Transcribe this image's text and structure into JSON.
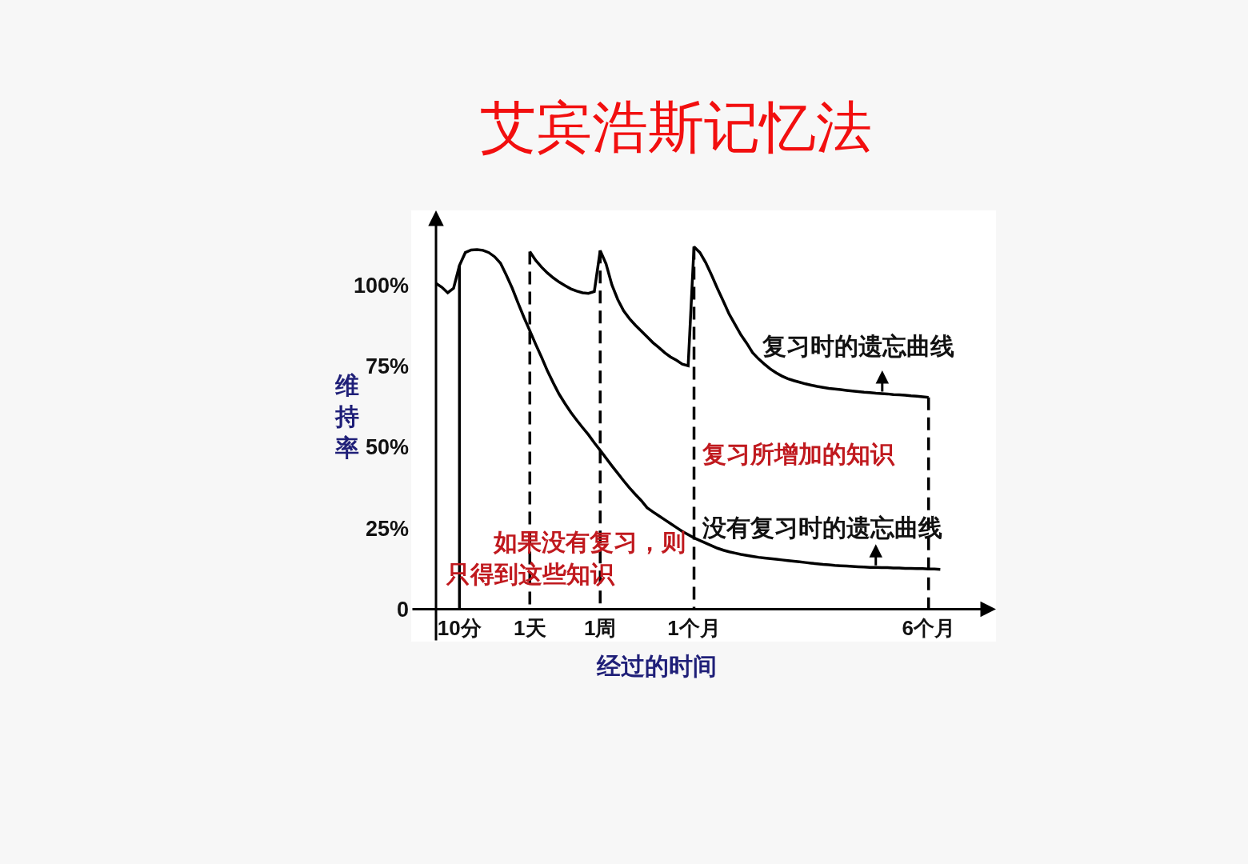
{
  "chart_data": {
    "type": "line",
    "title": "艾宾浩斯记忆法",
    "xlabel": "经过的时间",
    "ylabel": "维持率",
    "categories": [
      null,
      null,
      null,
      null,
      "10分",
      null,
      null,
      null,
      null,
      null,
      null,
      null,
      null,
      null,
      null,
      null,
      "1天",
      null,
      null,
      null,
      null,
      null,
      null,
      null,
      null,
      null,
      null,
      null,
      "1周",
      null,
      null,
      null,
      null,
      null,
      null,
      null,
      null,
      null,
      null,
      null,
      null,
      null,
      null,
      null,
      "1个月",
      null,
      null,
      null,
      null,
      null,
      null,
      null,
      null,
      null,
      null,
      null,
      null,
      null,
      null,
      null,
      null,
      null,
      null,
      null,
      null,
      null,
      null,
      null,
      null,
      null,
      null,
      null,
      null,
      null,
      null,
      null,
      null,
      null,
      null,
      null,
      null,
      null,
      null,
      null,
      "6个月",
      null,
      null
    ],
    "ylim": [
      -10,
      123
    ],
    "yticks": [
      0,
      {
        "value": 25,
        "label": "25%"
      },
      {
        "value": 50,
        "label": "50%"
      },
      {
        "value": 75,
        "label": "75%"
      },
      {
        "value": 100,
        "label": "100%"
      }
    ],
    "series": [
      {
        "color": "#000000",
        "values": [
          100.5,
          99.3,
          97.6,
          99.0,
          106.0,
          110.0,
          110.8,
          110.9,
          110.7,
          110.0,
          108.7,
          106.7,
          103.0,
          99.0,
          94.4,
          90.0,
          85.9,
          81.7,
          77.7,
          73.5,
          69.8,
          66.3,
          63.4,
          60.7,
          58.3,
          56.0,
          53.8,
          51.3,
          49.0,
          46.6,
          44.2,
          41.9,
          39.6,
          37.4,
          35.4,
          33.5,
          31.3,
          30.0,
          28.8,
          27.6,
          26.4,
          25.2,
          24.0,
          23.0,
          22.0,
          21.2,
          20.4,
          19.6,
          18.8,
          18.2,
          17.7,
          17.3,
          16.9,
          16.6,
          16.3,
          16.0,
          15.8,
          15.6,
          15.4,
          15.2,
          15.0,
          14.8,
          14.6,
          14.4,
          14.2,
          14.0,
          13.8,
          13.7,
          13.5,
          13.4,
          13.3,
          13.2,
          13.1,
          13.0,
          12.9,
          12.9,
          12.8,
          12.8,
          12.7,
          12.7,
          12.6,
          12.6,
          12.5,
          12.5,
          12.4,
          12.4,
          12.3
        ]
      },
      {
        "color": "#000000",
        "values": [
          null,
          null,
          null,
          null,
          null,
          null,
          null,
          null,
          null,
          null,
          null,
          null,
          null,
          null,
          null,
          null,
          110.3,
          107.6,
          105.5,
          103.7,
          102.2,
          100.9,
          99.8,
          98.8,
          98.1,
          97.6,
          97.4,
          98.0,
          110.6,
          106.5,
          100.0,
          95.5,
          92.0,
          89.6,
          87.6,
          85.8,
          84.0,
          82.2,
          80.7,
          79.1,
          77.8,
          76.8,
          75.6,
          75.1,
          111.8,
          110.0,
          106.9,
          103.0,
          98.9,
          95.0,
          91.0,
          87.8,
          84.6,
          82.0,
          79.1,
          77.2,
          75.6,
          74.1,
          72.9,
          71.9,
          71.1,
          70.5,
          70.0,
          69.5,
          69.1,
          68.7,
          68.4,
          68.1,
          67.9,
          67.7,
          67.5,
          67.3,
          67.1,
          66.9,
          66.8,
          66.6,
          66.5,
          66.4,
          66.2,
          66.1,
          66.0,
          65.8,
          65.7,
          65.5,
          65.3,
          null,
          null
        ]
      }
    ],
    "ref_lines": [
      {
        "axis": "x",
        "value": "10分",
        "color": "#000000",
        "line_style": "solid"
      },
      {
        "axis": "x",
        "value": "1天",
        "color": "#000000",
        "line_style": "dashed"
      },
      {
        "axis": "x",
        "value": "1周",
        "color": "#000000",
        "line_style": "dashed"
      },
      {
        "axis": "x",
        "value": "1个月",
        "color": "#000000",
        "line_style": "dashed"
      },
      {
        "axis": "x",
        "value": "6个月",
        "color": "#000000",
        "line_style": "dashed"
      }
    ],
    "annotations": [
      {
        "text": "复习时的遗忘曲线",
        "y": 66.5
      },
      "复习所增加的知识",
      {
        "text": "没有复习时的遗忘曲线",
        "y": 12.9
      },
      "如果没有复习，则",
      "只得到这些知识"
    ]
  }
}
